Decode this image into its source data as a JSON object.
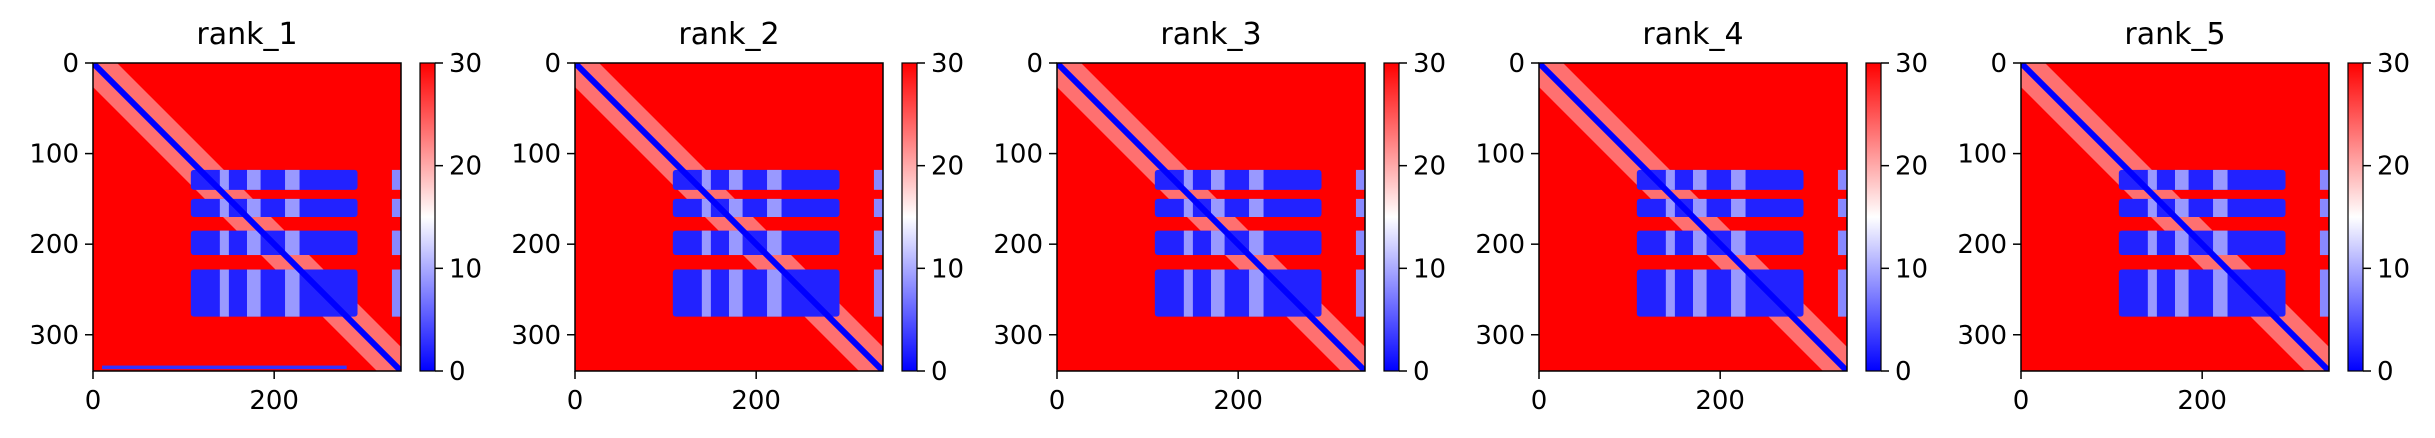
{
  "chart_data": [
    {
      "type": "heatmap",
      "title": "rank_1",
      "xlim": [
        0,
        340
      ],
      "ylim": [
        340,
        0
      ],
      "x_ticks": [
        0,
        200
      ],
      "y_ticks": [
        0,
        100,
        200,
        300
      ],
      "colorbar": {
        "range": [
          0,
          30
        ],
        "ticks": [
          0,
          10,
          20,
          30
        ],
        "colormap": "bwr"
      },
      "blocks": [
        [
          118,
          140
        ],
        [
          150,
          170
        ],
        [
          185,
          212
        ],
        [
          228,
          280
        ]
      ],
      "blue_blocks_x": [
        [
          108,
          292
        ]
      ],
      "background_value": 30,
      "block_value": 2,
      "diagonal_value": 0,
      "extra_features": [
        "bottom_blue_bar"
      ]
    },
    {
      "type": "heatmap",
      "title": "rank_2",
      "xlim": [
        0,
        340
      ],
      "ylim": [
        340,
        0
      ],
      "x_ticks": [
        0,
        200
      ],
      "y_ticks": [
        0,
        100,
        200,
        300
      ],
      "colorbar": {
        "range": [
          0,
          30
        ],
        "ticks": [
          0,
          10,
          20,
          30
        ],
        "colormap": "bwr"
      },
      "blocks": [
        [
          118,
          140
        ],
        [
          150,
          170
        ],
        [
          185,
          212
        ],
        [
          228,
          280
        ]
      ],
      "blue_blocks_x": [
        [
          108,
          292
        ]
      ],
      "background_value": 30,
      "block_value": 2,
      "diagonal_value": 0,
      "extra_features": []
    },
    {
      "type": "heatmap",
      "title": "rank_3",
      "xlim": [
        0,
        340
      ],
      "ylim": [
        340,
        0
      ],
      "x_ticks": [
        0,
        200
      ],
      "y_ticks": [
        0,
        100,
        200,
        300
      ],
      "colorbar": {
        "range": [
          0,
          30
        ],
        "ticks": [
          0,
          10,
          20,
          30
        ],
        "colormap": "bwr"
      },
      "blocks": [
        [
          118,
          140
        ],
        [
          150,
          170
        ],
        [
          185,
          212
        ],
        [
          228,
          280
        ]
      ],
      "blue_blocks_x": [
        [
          108,
          292
        ]
      ],
      "background_value": 30,
      "block_value": 2,
      "diagonal_value": 0,
      "extra_features": []
    },
    {
      "type": "heatmap",
      "title": "rank_4",
      "xlim": [
        0,
        340
      ],
      "ylim": [
        340,
        0
      ],
      "x_ticks": [
        0,
        200
      ],
      "y_ticks": [
        0,
        100,
        200,
        300
      ],
      "colorbar": {
        "range": [
          0,
          30
        ],
        "ticks": [
          0,
          10,
          20,
          30
        ],
        "colormap": "bwr"
      },
      "blocks": [
        [
          118,
          140
        ],
        [
          150,
          170
        ],
        [
          185,
          212
        ],
        [
          228,
          280
        ]
      ],
      "blue_blocks_x": [
        [
          108,
          292
        ]
      ],
      "background_value": 30,
      "block_value": 2,
      "diagonal_value": 0,
      "extra_features": []
    },
    {
      "type": "heatmap",
      "title": "rank_5",
      "xlim": [
        0,
        340
      ],
      "ylim": [
        340,
        0
      ],
      "x_ticks": [
        0,
        200
      ],
      "y_ticks": [
        0,
        100,
        200,
        300
      ],
      "colorbar": {
        "range": [
          0,
          30
        ],
        "ticks": [
          0,
          10,
          20,
          30
        ],
        "colormap": "bwr"
      },
      "blocks": [
        [
          118,
          140
        ],
        [
          150,
          170
        ],
        [
          185,
          212
        ],
        [
          228,
          280
        ]
      ],
      "blue_blocks_x": [
        [
          108,
          292
        ]
      ],
      "background_value": 30,
      "block_value": 2,
      "diagonal_value": 0,
      "extra_features": []
    }
  ],
  "colors": {
    "high": "#ff0000",
    "mid": "#ffffff",
    "low": "#0000ff",
    "axis": "#000000"
  }
}
